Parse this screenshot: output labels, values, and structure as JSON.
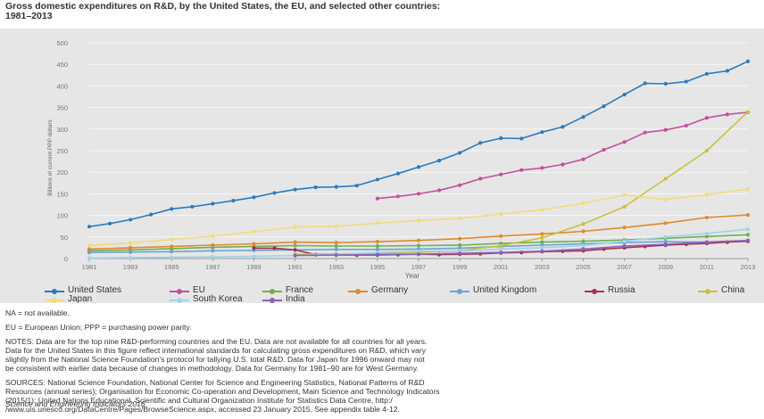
{
  "title_line1": "Gross domestic expenditures on R&D, by the United States, the EU, and selected other countries:",
  "title_line2": "1981–2013",
  "legend_labels": [
    "United States",
    "EU",
    "France",
    "Germany",
    "United Kingdom",
    "Russia",
    "China",
    "Japan",
    "South Korea",
    "India"
  ],
  "notes": {
    "na": "NA = not available.",
    "eu": "EU = European Union; PPP = purchasing power parity.",
    "notes_lines": [
      "NOTES: Data are for the top nine R&D-performing countries and the EU. Data are not available for all countries for all years.",
      "Data for the United States in this figure reflect international standards for calculating gross expenditures on R&D, which vary",
      "slightly from the National Science Foundation's protocol for tallying U.S. total R&D. Data for Japan for 1996 onward may not",
      "be consistent with earlier data because of changes in methodology. Data for Germany for 1981–90 are for West Germany."
    ],
    "sources_lines": [
      "SOURCES: National Science Foundation, National Center for Science and Engineering Statistics, National Patterns of R&D",
      "Resources (annual series); Organisation for Economic Co-operation and Development, Main Science and Technology Indicators",
      "(2015/1); United Nations Educational, Scientific and Cultural Organization Institute for Statistics Data Centre, http:/",
      "/www.uis.unesco.org/DataCentre/Pages/BrowseScience.aspx, accessed 23 January 2015. See appendix table 4-12."
    ]
  },
  "footer": "Science and Engineering Indicators 2016",
  "chart_data": {
    "type": "line",
    "title": "Gross domestic expenditures on R&D, by the United States, the EU, and selected other countries: 1981–2013",
    "xlabel": "Year",
    "ylabel": "Billions of current PPP dollars",
    "xlim": [
      1981,
      2013
    ],
    "ylim": [
      0,
      500
    ],
    "x_ticks": [
      1981,
      1983,
      1985,
      1987,
      1989,
      1991,
      1993,
      1995,
      1997,
      1999,
      2001,
      2003,
      2005,
      2007,
      2009,
      2011,
      2013
    ],
    "y_ticks": [
      0,
      50,
      100,
      150,
      200,
      250,
      300,
      350,
      400,
      450,
      500
    ],
    "grid": true,
    "legend_position": "bottom",
    "series": [
      {
        "name": "United States",
        "color": "#2b7bbd",
        "x": [
          1981,
          1982,
          1983,
          1984,
          1985,
          1986,
          1987,
          1988,
          1989,
          1990,
          1991,
          1992,
          1993,
          1994,
          1995,
          1996,
          1997,
          1998,
          1999,
          2000,
          2001,
          2002,
          2003,
          2004,
          2005,
          2006,
          2007,
          2008,
          2009,
          2010,
          2011,
          2012,
          2013
        ],
        "y": [
          74,
          81,
          90,
          102,
          115,
          120,
          127,
          134,
          142,
          152,
          160,
          165,
          166,
          169,
          183,
          197,
          212,
          227,
          245,
          268,
          279,
          278,
          293,
          305,
          328,
          353,
          380,
          406,
          405,
          410,
          428,
          435,
          457
        ]
      },
      {
        "name": "EU",
        "color": "#c4509a",
        "x": [
          1995,
          1996,
          1997,
          1998,
          1999,
          2000,
          2001,
          2002,
          2003,
          2004,
          2005,
          2006,
          2007,
          2008,
          2009,
          2010,
          2011,
          2012,
          2013
        ],
        "y": [
          139,
          144,
          150,
          158,
          170,
          185,
          195,
          205,
          210,
          218,
          230,
          252,
          270,
          292,
          298,
          308,
          326,
          334,
          339
        ]
      },
      {
        "name": "France",
        "color": "#6fb14a",
        "x": [
          1981,
          1983,
          1985,
          1987,
          1989,
          1991,
          1993,
          1995,
          1997,
          1999,
          2001,
          2003,
          2005,
          2007,
          2009,
          2011,
          2013
        ],
        "y": [
          18,
          20,
          23,
          26,
          28,
          30,
          29,
          29,
          30,
          31,
          35,
          38,
          40,
          43,
          47,
          51,
          55
        ]
      },
      {
        "name": "Germany",
        "color": "#e08a2a",
        "x": [
          1981,
          1983,
          1985,
          1987,
          1989,
          1991,
          1993,
          1995,
          1997,
          1999,
          2001,
          2003,
          2005,
          2007,
          2009,
          2011,
          2013
        ],
        "y": [
          22,
          25,
          28,
          31,
          34,
          38,
          37,
          39,
          42,
          46,
          52,
          57,
          63,
          72,
          82,
          95,
          101
        ]
      },
      {
        "name": "United Kingdom",
        "color": "#6aa3d5",
        "x": [
          1981,
          1983,
          1985,
          1987,
          1989,
          1991,
          1993,
          1995,
          1997,
          1999,
          2001,
          2003,
          2005,
          2007,
          2009,
          2011,
          2013
        ],
        "y": [
          14,
          15,
          16,
          18,
          19,
          20,
          21,
          21,
          22,
          24,
          28,
          31,
          34,
          37,
          39,
          38,
          40
        ]
      },
      {
        "name": "Russia",
        "color": "#a8304f",
        "x": [
          1989,
          1990,
          1991,
          1992,
          1993,
          1994,
          1995,
          1996,
          1997,
          1998,
          1999,
          2000,
          2001,
          2002,
          2003,
          2004,
          2005,
          2006,
          2007,
          2008,
          2009,
          2010,
          2011,
          2012,
          2013
        ],
        "y": [
          24,
          24,
          20,
          9,
          8,
          8,
          8,
          9,
          10,
          9,
          10,
          11,
          13,
          14,
          16,
          17,
          18,
          22,
          25,
          28,
          31,
          33,
          35,
          38,
          40
        ]
      },
      {
        "name": "China",
        "color": "#c9c23a",
        "x": [
          1991,
          1993,
          1995,
          1997,
          1999,
          2001,
          2003,
          2005,
          2007,
          2009,
          2011,
          2013
        ],
        "y": [
          10,
          11,
          12,
          14,
          18,
          30,
          48,
          80,
          120,
          185,
          250,
          340
        ]
      },
      {
        "name": "Japan",
        "color": "#f0dc7a",
        "x": [
          1981,
          1983,
          1985,
          1987,
          1989,
          1991,
          1993,
          1995,
          1997,
          1999,
          2001,
          2003,
          2005,
          2007,
          2009,
          2011,
          2013
        ],
        "y": [
          30,
          36,
          44,
          52,
          62,
          73,
          75,
          82,
          88,
          93,
          103,
          113,
          128,
          147,
          137,
          148,
          161
        ]
      },
      {
        "name": "South Korea",
        "color": "#9fd3ea",
        "x": [
          1981,
          1983,
          1985,
          1987,
          1989,
          1991,
          1993,
          1995,
          1997,
          1999,
          2001,
          2003,
          2005,
          2007,
          2009,
          2011,
          2013
        ],
        "y": [
          1,
          2,
          3,
          4,
          5,
          7,
          10,
          14,
          17,
          17,
          22,
          25,
          30,
          40,
          50,
          58,
          68
        ]
      },
      {
        "name": "India",
        "color": "#8a63b8",
        "x": [
          1991,
          1993,
          1995,
          1997,
          1999,
          2001,
          2003,
          2005,
          2007,
          2009,
          2011,
          2013
        ],
        "y": [
          7,
          8,
          9,
          10,
          12,
          14,
          17,
          22,
          29,
          33,
          38,
          42
        ]
      }
    ]
  }
}
